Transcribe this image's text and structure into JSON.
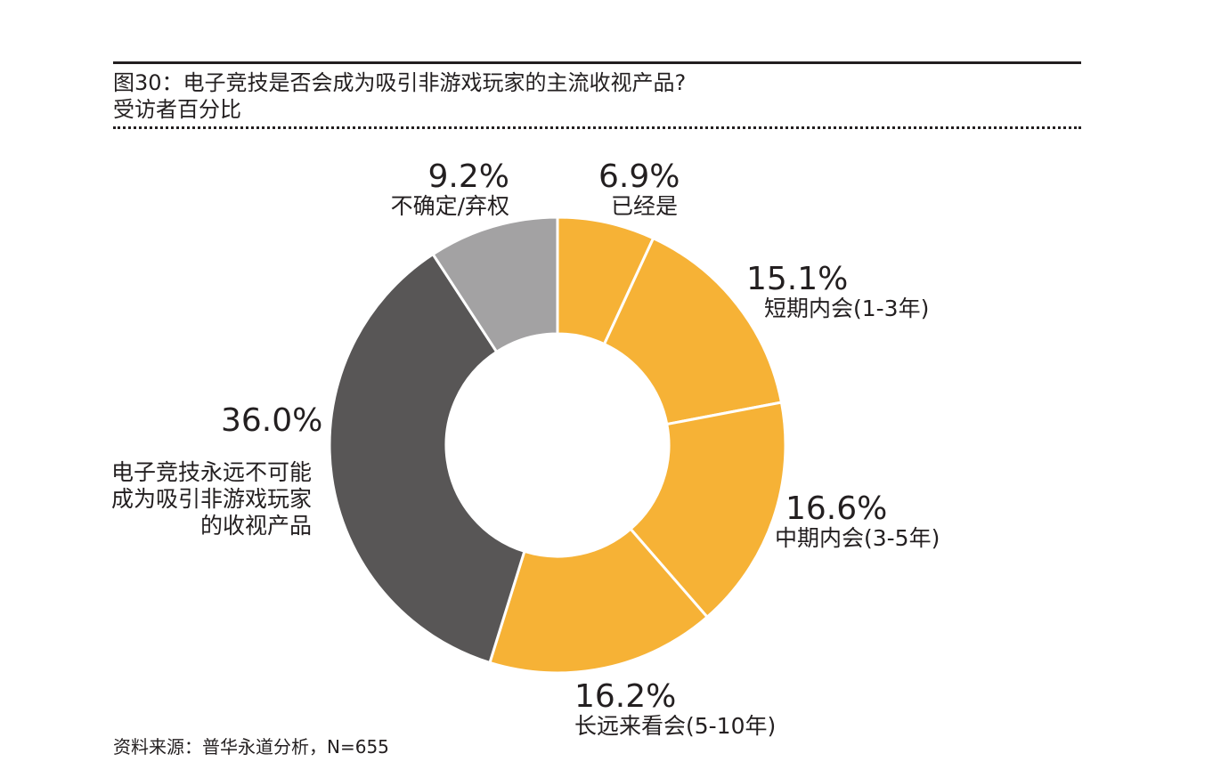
{
  "title": "图30：电子竞技是否会成为吸引非游戏玩家的主流收视产品?",
  "subtitle": "受访者百分比",
  "source": "资料来源：普华永道分析，N=655",
  "chart_data": {
    "type": "pie",
    "donut": true,
    "start": "top, clockwise",
    "slices": [
      {
        "label": "已经是",
        "value": 6.9,
        "value_label": "6.9%",
        "color": "#F6B236"
      },
      {
        "label": "短期内会(1-3年)",
        "value": 15.1,
        "value_label": "15.1%",
        "color": "#F6B236"
      },
      {
        "label": "中期内会(3-5年)",
        "value": 16.6,
        "value_label": "16.6%",
        "color": "#F6B236"
      },
      {
        "label": "长远来看会(5-10年)",
        "value": 16.2,
        "value_label": "16.2%",
        "color": "#F6B236"
      },
      {
        "label": "电子竞技永远不可能成为吸引非游戏玩家的收视产品",
        "value": 36.0,
        "value_label": "36.0%",
        "color": "#585656"
      },
      {
        "label": "不确定/弃权",
        "value": 9.2,
        "value_label": "9.2%",
        "color": "#A3A2A3"
      }
    ]
  }
}
